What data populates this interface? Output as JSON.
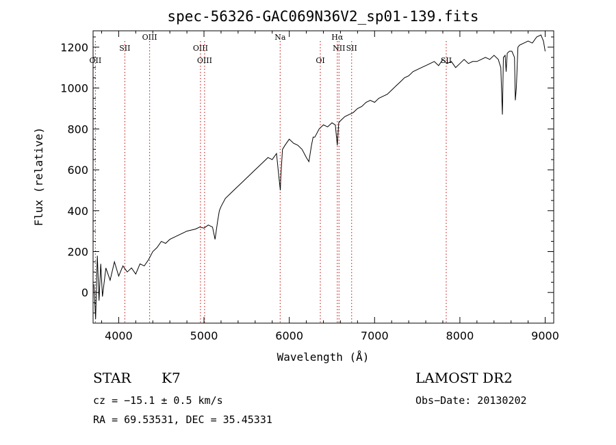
{
  "chart_data": {
    "type": "line",
    "title": "spec-56326-GAC069N36V2_sp01-139.fits",
    "xlabel": "Wavelength (Å)",
    "ylabel": "Flux (relative)",
    "xlim": [
      3700,
      9100
    ],
    "ylim": [
      -150,
      1280
    ],
    "xticks": [
      {
        "value": 4000,
        "label": "4000"
      },
      {
        "value": 5000,
        "label": "5000"
      },
      {
        "value": 6000,
        "label": "6000"
      },
      {
        "value": 7000,
        "label": "7000"
      },
      {
        "value": 8000,
        "label": "8000"
      },
      {
        "value": 9000,
        "label": "9000"
      }
    ],
    "yticks": [
      {
        "value": 0,
        "label": "0"
      },
      {
        "value": 200,
        "label": "200"
      },
      {
        "value": 400,
        "label": "400"
      },
      {
        "value": 600,
        "label": "600"
      },
      {
        "value": 800,
        "label": "800"
      },
      {
        "value": 1000,
        "label": "1000"
      },
      {
        "value": 1200,
        "label": "1200"
      }
    ],
    "series": [
      {
        "name": "flux",
        "x": [
          3710,
          3730,
          3750,
          3770,
          3790,
          3810,
          3850,
          3900,
          3950,
          4000,
          4050,
          4100,
          4150,
          4200,
          4250,
          4300,
          4350,
          4400,
          4450,
          4500,
          4550,
          4600,
          4650,
          4700,
          4750,
          4800,
          4850,
          4900,
          4950,
          5000,
          5050,
          5100,
          5130,
          5160,
          5180,
          5200,
          5250,
          5300,
          5350,
          5400,
          5450,
          5500,
          5550,
          5600,
          5650,
          5700,
          5750,
          5800,
          5850,
          5870,
          5890,
          5895,
          5900,
          5920,
          5950,
          6000,
          6050,
          6100,
          6150,
          6200,
          6230,
          6260,
          6280,
          6300,
          6350,
          6400,
          6450,
          6500,
          6540,
          6563,
          6580,
          6600,
          6650,
          6700,
          6750,
          6800,
          6850,
          6900,
          6950,
          7000,
          7050,
          7100,
          7150,
          7200,
          7250,
          7300,
          7350,
          7400,
          7450,
          7500,
          7550,
          7600,
          7650,
          7700,
          7750,
          7800,
          7850,
          7900,
          7950,
          8000,
          8050,
          8100,
          8150,
          8200,
          8250,
          8300,
          8350,
          8400,
          8450,
          8480,
          8498,
          8510,
          8530,
          8542,
          8555,
          8580,
          8610,
          8640,
          8650,
          8662,
          8680,
          8700,
          8750,
          8800,
          8850,
          8900,
          8950,
          8980,
          9000
        ],
        "y": [
          40,
          -130,
          180,
          -40,
          140,
          -20,
          120,
          60,
          150,
          80,
          130,
          100,
          120,
          90,
          140,
          130,
          160,
          200,
          220,
          250,
          240,
          260,
          270,
          280,
          290,
          300,
          305,
          310,
          320,
          315,
          330,
          320,
          260,
          350,
          400,
          420,
          460,
          480,
          500,
          520,
          540,
          560,
          580,
          600,
          620,
          640,
          660,
          650,
          680,
          600,
          520,
          500,
          560,
          700,
          720,
          750,
          730,
          720,
          700,
          660,
          640,
          720,
          760,
          760,
          800,
          820,
          810,
          830,
          820,
          720,
          830,
          840,
          860,
          870,
          880,
          900,
          910,
          930,
          940,
          930,
          950,
          960,
          970,
          990,
          1010,
          1030,
          1050,
          1060,
          1080,
          1090,
          1100,
          1110,
          1120,
          1130,
          1110,
          1140,
          1120,
          1130,
          1100,
          1120,
          1140,
          1120,
          1130,
          1130,
          1140,
          1150,
          1140,
          1160,
          1140,
          1100,
          870,
          1150,
          1160,
          1080,
          1170,
          1180,
          1180,
          1150,
          940,
          1000,
          1200,
          1210,
          1220,
          1230,
          1220,
          1250,
          1260,
          1230,
          1180
        ]
      }
    ],
    "line_markers": [
      {
        "name": "OII",
        "wavelength": 3727,
        "color": "#c00000"
      },
      {
        "name": "SII",
        "wavelength": 4072,
        "color": "#c00000"
      },
      {
        "name": "OIII",
        "wavelength": 4363,
        "color": "#c00000"
      },
      {
        "name": "OIII",
        "wavelength": 4959,
        "color": "#c00000"
      },
      {
        "name": "OIII",
        "wavelength": 5007,
        "color": "#c00000"
      },
      {
        "name": "Na",
        "wavelength": 5893,
        "color": "#c00000"
      },
      {
        "name": "OI",
        "wavelength": 6364,
        "color": "#c00000"
      },
      {
        "name": "Hα",
        "wavelength": 6563,
        "color": "#c00000"
      },
      {
        "name": "NII",
        "wavelength": 6583,
        "color": "#c00000"
      },
      {
        "name": "SII",
        "wavelength": 6731,
        "color": "#c00000"
      },
      {
        "name": "SII",
        "wavelength": 7840,
        "color": "#c00000"
      }
    ],
    "grid": false,
    "legend": "none"
  },
  "info": {
    "class": "STAR",
    "subclass": "K7",
    "survey": "LAMOST DR2",
    "cz": "cz = −15.1 ± 0.5 km/s",
    "obs_date": "Obs−Date: 20130202",
    "coords": "RA =  69.53531, DEC =  35.45331"
  },
  "colors": {
    "line": "#000000",
    "marker": "#c00000"
  }
}
